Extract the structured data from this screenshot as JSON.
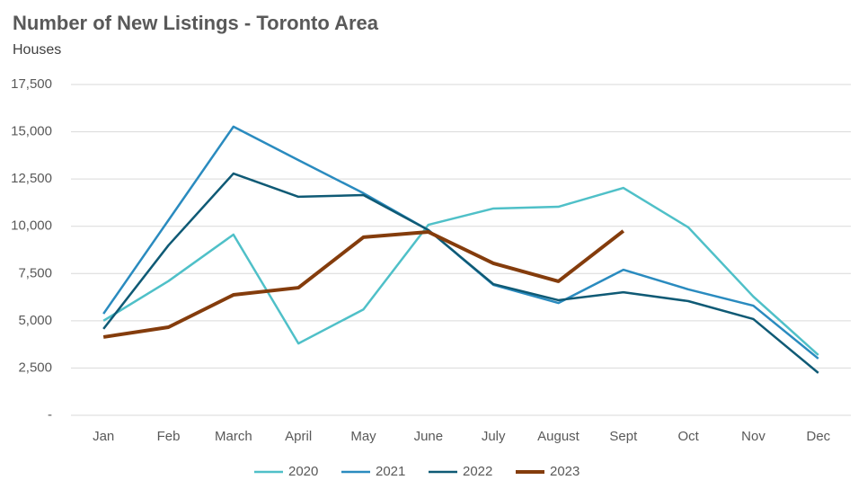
{
  "chart_data": {
    "type": "line",
    "title": "Number of New Listings - Toronto Area",
    "subtitle": "Houses",
    "categories": [
      "Jan",
      "Feb",
      "March",
      "April",
      "May",
      "June",
      "July",
      "August",
      "Sept",
      "Oct",
      "Nov",
      "Dec"
    ],
    "series": [
      {
        "name": "2020",
        "color": "#4fc0c8",
        "values": [
          5000,
          7100,
          9560,
          3800,
          5600,
          10080,
          10940,
          11030,
          12030,
          9940,
          6280,
          3190
        ]
      },
      {
        "name": "2021",
        "color": "#2a8bbf",
        "values": [
          5370,
          10320,
          15270,
          13500,
          11750,
          9800,
          6900,
          5940,
          7700,
          6660,
          5800,
          3000
        ]
      },
      {
        "name": "2022",
        "color": "#0f5a75",
        "values": [
          4570,
          8990,
          12790,
          11560,
          11650,
          9800,
          6940,
          6090,
          6510,
          6040,
          5090,
          2240
        ]
      },
      {
        "name": "2023",
        "color": "#843c0c",
        "values": [
          4140,
          4660,
          6370,
          6750,
          9420,
          9700,
          8040,
          7090,
          9750,
          null,
          null,
          null
        ]
      }
    ],
    "ylim": [
      0,
      17500
    ],
    "yticks": [
      {
        "value": 0,
        "label": "-"
      },
      {
        "value": 2500,
        "label": "2,500"
      },
      {
        "value": 5000,
        "label": "5,000"
      },
      {
        "value": 7500,
        "label": "7,500"
      },
      {
        "value": 10000,
        "label": "10,000"
      },
      {
        "value": 12500,
        "label": "12,500"
      },
      {
        "value": 15000,
        "label": "15,000"
      },
      {
        "value": 17500,
        "label": "17,500"
      }
    ],
    "grid": true,
    "legend": "bottom"
  }
}
